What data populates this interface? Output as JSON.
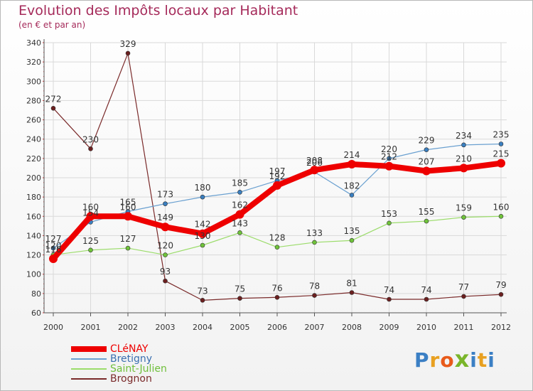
{
  "header": {
    "title": "Evolution des Impôts locaux par Habitant",
    "subtitle": "(en € et par an)"
  },
  "colors": {
    "title": "#a52a5a",
    "grid": "#d9d9d9",
    "axis": "#555555"
  },
  "logo": {
    "text": "Proxiti",
    "letters": [
      "P",
      "r",
      "o",
      "x",
      "i",
      "t",
      "i"
    ],
    "letter_colors": [
      "#3b7fc4",
      "#e8a020",
      "#e85a1a",
      "#7ab52a",
      "#3b7fc4",
      "#e8a020",
      "#3b7fc4"
    ]
  },
  "chart_data": {
    "type": "line",
    "title": "Evolution des Impôts locaux par Habitant",
    "subtitle": "(en € et par an)",
    "xlabel": "",
    "ylabel": "",
    "x": [
      "2000",
      "2001",
      "2002",
      "2003",
      "2004",
      "2005",
      "2006",
      "2007",
      "2008",
      "2009",
      "2010",
      "2011",
      "2012"
    ],
    "ylim": [
      60,
      340
    ],
    "yticks": [
      60,
      80,
      100,
      120,
      140,
      160,
      180,
      200,
      220,
      240,
      260,
      280,
      300,
      320,
      340
    ],
    "grid": true,
    "legend_position": "bottom-left",
    "series": [
      {
        "name": "Brognon",
        "color": "#7a2a2a",
        "point_color": "#6b1f1f",
        "width": 1.2,
        "marker": 3,
        "values": [
          272,
          230,
          329,
          93,
          73,
          75,
          76,
          78,
          81,
          74,
          74,
          77,
          79
        ],
        "labels": [
          "272",
          "230",
          "329",
          "93",
          "73",
          "75",
          "76",
          "78",
          "81",
          "74",
          "74",
          "77",
          "79"
        ],
        "label_side": [
          "above",
          "above",
          "above",
          "above",
          "above",
          "above",
          "above",
          "above",
          "above",
          "above",
          "above",
          "above",
          "above"
        ]
      },
      {
        "name": "Saint-Julien",
        "color": "#9bdc6a",
        "point_color": "#6fc33a",
        "width": 1.2,
        "marker": 3,
        "values": [
          120,
          125,
          127,
          120,
          130,
          143,
          128,
          133,
          135,
          153,
          155,
          159,
          160
        ],
        "labels": [
          "120",
          "125",
          "127",
          "120",
          "130",
          "143",
          "128",
          "133",
          "135",
          "153",
          "155",
          "159",
          "160"
        ],
        "label_side": [
          "above",
          "above",
          "above",
          "above",
          "above",
          "above",
          "above",
          "above",
          "above",
          "above",
          "above",
          "above",
          "above"
        ]
      },
      {
        "name": "Bretigny",
        "color": "#6aa0d0",
        "point_color": "#3a7fc0",
        "width": 1.2,
        "marker": 3,
        "values": [
          127,
          154,
          165,
          173,
          180,
          185,
          197,
          206,
          182,
          220,
          229,
          234,
          235
        ],
        "labels": [
          "127",
          "154",
          "165",
          "173",
          "180",
          "185",
          "197",
          "206",
          "182",
          "220",
          "229",
          "234",
          "235"
        ],
        "label_side": [
          "above",
          "above",
          "above",
          "above",
          "above",
          "above",
          "above",
          "above",
          "above",
          "above",
          "above",
          "above",
          "above"
        ]
      },
      {
        "name": "CLéNAY",
        "color": "#ee0000",
        "point_color": "#ee0000",
        "width": 8,
        "marker": 6,
        "values": [
          116,
          160,
          160,
          149,
          142,
          162,
          192,
          208,
          214,
          212,
          207,
          210,
          215
        ],
        "labels": [
          "116",
          "160",
          "160",
          "149",
          "142",
          "162",
          "192",
          "208",
          "214",
          "212",
          "207",
          "210",
          "215"
        ],
        "label_side": [
          "above",
          "above",
          "above",
          "above",
          "above",
          "above",
          "above",
          "above",
          "above",
          "above",
          "above",
          "above",
          "above"
        ]
      }
    ]
  },
  "legend": {
    "items": [
      {
        "label": "CLéNAY",
        "color": "#ee0000",
        "thickness": 8
      },
      {
        "label": "Bretigny",
        "color": "#6aa0d0",
        "thickness": 2
      },
      {
        "label": "Saint-Julien",
        "color": "#9bdc6a",
        "thickness": 2
      },
      {
        "label": "Brognon",
        "color": "#7a2a2a",
        "thickness": 2
      }
    ]
  }
}
